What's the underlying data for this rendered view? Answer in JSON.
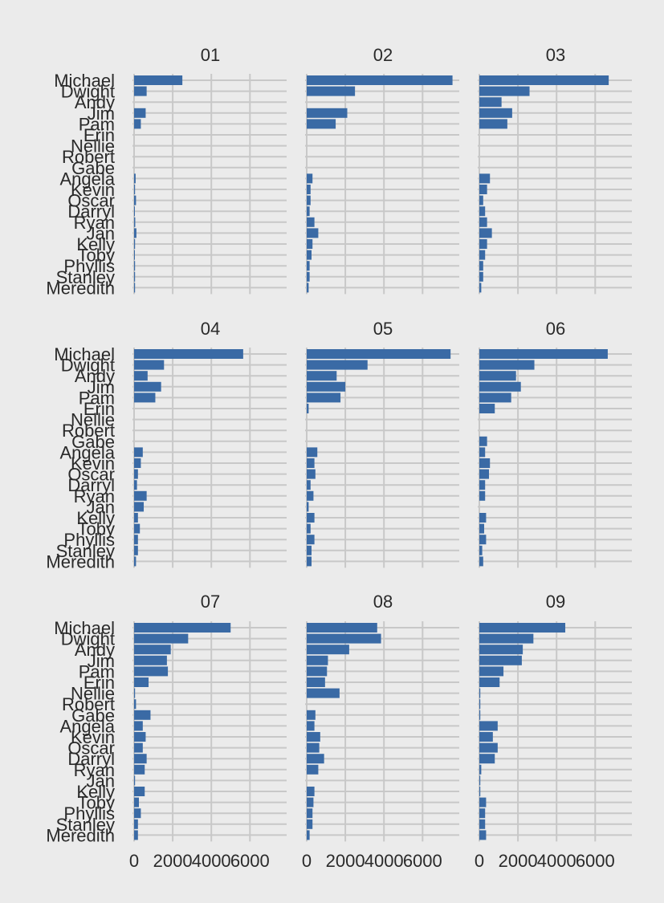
{
  "chart_data": {
    "type": "bar",
    "orientation": "horizontal",
    "facet_layout": "3x3",
    "colors": {
      "bar": "#3a6aa5",
      "background": "#ebebeb",
      "grid": "#c8c8c8"
    },
    "grid": true,
    "x_ticks": [
      0,
      2000,
      4000,
      6000
    ],
    "x_tick_labels": [
      "0",
      "2000",
      "4000",
      "6000"
    ],
    "xlim": [
      0,
      7900
    ],
    "categories": [
      "Michael",
      "Dwight",
      "Andy",
      "Jim",
      "Pam",
      "Erin",
      "Nellie",
      "Robert",
      "Gabe",
      "Angela",
      "Kevin",
      "Oscar",
      "Darryl",
      "Ryan",
      "Jan",
      "Kelly",
      "Toby",
      "Phyllis",
      "Stanley",
      "Meredith"
    ],
    "panels": [
      {
        "title": "01",
        "values": [
          2500,
          650,
          0,
          600,
          350,
          0,
          0,
          0,
          0,
          80,
          50,
          100,
          40,
          60,
          120,
          50,
          40,
          50,
          50,
          50
        ]
      },
      {
        "title": "02",
        "values": [
          7550,
          2500,
          0,
          2100,
          1500,
          0,
          0,
          0,
          0,
          300,
          200,
          200,
          150,
          400,
          600,
          300,
          250,
          150,
          150,
          100
        ]
      },
      {
        "title": "03",
        "values": [
          6700,
          2600,
          1150,
          1700,
          1450,
          0,
          0,
          0,
          0,
          550,
          400,
          200,
          300,
          400,
          650,
          400,
          300,
          200,
          200,
          100
        ]
      },
      {
        "title": "04",
        "values": [
          5650,
          1550,
          700,
          1400,
          1100,
          0,
          0,
          0,
          0,
          450,
          350,
          200,
          150,
          650,
          500,
          200,
          300,
          200,
          200,
          100
        ]
      },
      {
        "title": "05",
        "values": [
          7450,
          3150,
          1550,
          2000,
          1750,
          100,
          0,
          0,
          0,
          550,
          400,
          450,
          200,
          350,
          100,
          400,
          200,
          400,
          250,
          250
        ]
      },
      {
        "title": "06",
        "values": [
          6650,
          2850,
          1900,
          2150,
          1650,
          800,
          0,
          0,
          400,
          300,
          550,
          500,
          300,
          300,
          0,
          350,
          250,
          350,
          150,
          200
        ]
      },
      {
        "title": "07",
        "values": [
          5000,
          2800,
          1900,
          1700,
          1750,
          750,
          50,
          100,
          850,
          450,
          600,
          450,
          650,
          550,
          50,
          550,
          250,
          350,
          200,
          200
        ]
      },
      {
        "title": "08",
        "values": [
          3650,
          3850,
          2200,
          1100,
          1050,
          950,
          1700,
          0,
          450,
          400,
          700,
          650,
          900,
          600,
          0,
          400,
          350,
          300,
          300,
          150
        ]
      },
      {
        "title": "09",
        "values": [
          4450,
          2800,
          2250,
          2200,
          1250,
          1050,
          50,
          50,
          50,
          950,
          700,
          950,
          800,
          100,
          50,
          50,
          350,
          300,
          300,
          350
        ]
      }
    ]
  }
}
